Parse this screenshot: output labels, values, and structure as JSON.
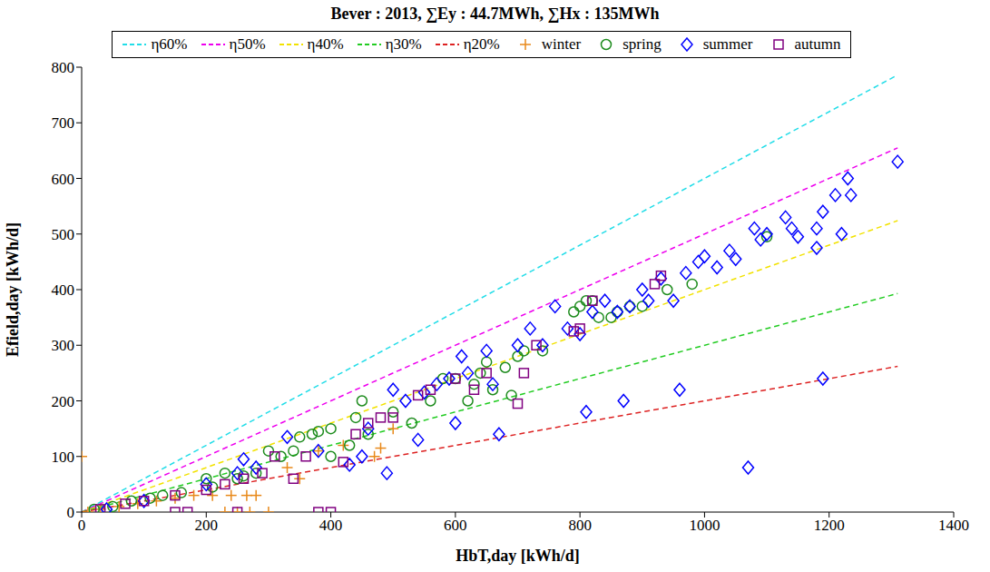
{
  "chart_data": {
    "type": "scatter",
    "title": "Bever : 2013, ∑Ey : 44.7MWh, ∑Hx : 135MWh",
    "x_label": "HbT,day [kWh/d]",
    "y_label": "Efield,day [kWh/d]",
    "xlim": [
      0,
      1400
    ],
    "xticks": [
      0,
      200,
      400,
      600,
      800,
      1000,
      1200,
      1400
    ],
    "ylim": [
      0,
      800
    ],
    "yticks": [
      0,
      100,
      200,
      300,
      400,
      500,
      600,
      700,
      800
    ],
    "grid": false,
    "legend": "top",
    "series": [
      {
        "name": "η60%",
        "type": "line",
        "line_style": "dashed",
        "color": "#22dde8",
        "x": [
          0,
          1310
        ],
        "values": [
          0,
          786
        ]
      },
      {
        "name": "η50%",
        "type": "line",
        "line_style": "dashed",
        "color": "#ee00ee",
        "x": [
          0,
          1310
        ],
        "values": [
          0,
          655
        ]
      },
      {
        "name": "η40%",
        "type": "line",
        "line_style": "dashed",
        "color": "#f2e200",
        "x": [
          0,
          1310
        ],
        "values": [
          0,
          524
        ]
      },
      {
        "name": "η30%",
        "type": "line",
        "line_style": "dashed",
        "color": "#22cc22",
        "x": [
          0,
          1310
        ],
        "values": [
          0,
          393
        ]
      },
      {
        "name": "η20%",
        "type": "line",
        "line_style": "dashed",
        "color": "#dd2222",
        "x": [
          0,
          1310
        ],
        "values": [
          0,
          262
        ]
      },
      {
        "name": "winter",
        "type": "scatter",
        "marker": "plus",
        "color": "#e8891a",
        "x": [
          0,
          10,
          30,
          60,
          90,
          120,
          150,
          180,
          210,
          230,
          240,
          250,
          265,
          270,
          280,
          300,
          330,
          350,
          380,
          420,
          470,
          480,
          500
        ],
        "values": [
          100,
          0,
          5,
          10,
          15,
          20,
          25,
          30,
          30,
          0,
          30,
          0,
          30,
          0,
          30,
          0,
          80,
          60,
          110,
          120,
          100,
          115,
          150
        ]
      },
      {
        "name": "spring",
        "type": "scatter",
        "marker": "circle",
        "color": "#1e8c1e",
        "x": [
          20,
          50,
          80,
          110,
          130,
          160,
          200,
          210,
          230,
          250,
          260,
          280,
          300,
          320,
          340,
          350,
          370,
          380,
          400,
          400,
          430,
          440,
          450,
          460,
          500,
          530,
          560,
          580,
          600,
          620,
          630,
          640,
          650,
          660,
          680,
          690,
          700,
          710,
          740,
          790,
          800,
          810,
          820,
          830,
          850,
          860,
          880,
          900,
          940,
          980,
          1100
        ],
        "values": [
          5,
          10,
          20,
          25,
          30,
          35,
          60,
          45,
          70,
          60,
          65,
          70,
          110,
          100,
          110,
          135,
          140,
          145,
          150,
          100,
          120,
          170,
          200,
          140,
          180,
          160,
          200,
          240,
          240,
          200,
          230,
          250,
          270,
          220,
          260,
          210,
          280,
          290,
          290,
          360,
          370,
          380,
          380,
          350,
          350,
          360,
          370,
          370,
          400,
          410,
          495
        ]
      },
      {
        "name": "summer",
        "type": "scatter",
        "marker": "diamond",
        "color": "#0000ff",
        "x": [
          40,
          100,
          200,
          250,
          260,
          280,
          330,
          380,
          430,
          450,
          460,
          490,
          500,
          520,
          540,
          550,
          570,
          590,
          600,
          610,
          620,
          650,
          660,
          670,
          700,
          720,
          740,
          760,
          780,
          800,
          810,
          820,
          840,
          860,
          870,
          880,
          900,
          910,
          930,
          950,
          960,
          970,
          990,
          1000,
          1020,
          1040,
          1050,
          1070,
          1080,
          1090,
          1100,
          1130,
          1140,
          1150,
          1180,
          1180,
          1190,
          1190,
          1210,
          1220,
          1230,
          1235,
          1310
        ],
        "values": [
          5,
          20,
          50,
          70,
          95,
          80,
          135,
          110,
          85,
          100,
          150,
          70,
          220,
          200,
          130,
          215,
          230,
          240,
          160,
          280,
          250,
          290,
          230,
          140,
          300,
          330,
          300,
          370,
          330,
          320,
          180,
          360,
          380,
          360,
          200,
          370,
          400,
          380,
          420,
          380,
          220,
          430,
          450,
          460,
          440,
          470,
          455,
          80,
          510,
          490,
          500,
          530,
          510,
          495,
          475,
          510,
          540,
          240,
          570,
          500,
          600,
          570,
          630
        ]
      },
      {
        "name": "autumn",
        "type": "scatter",
        "marker": "square",
        "color": "#800080",
        "x": [
          30,
          70,
          100,
          150,
          150,
          170,
          200,
          230,
          250,
          260,
          290,
          310,
          340,
          360,
          380,
          400,
          420,
          440,
          460,
          480,
          500,
          540,
          560,
          600,
          630,
          650,
          700,
          710,
          730,
          790,
          800,
          820,
          920,
          930
        ],
        "values": [
          5,
          15,
          20,
          30,
          0,
          0,
          40,
          50,
          0,
          60,
          70,
          100,
          60,
          100,
          0,
          0,
          90,
          140,
          160,
          170,
          170,
          210,
          220,
          240,
          220,
          250,
          195,
          250,
          300,
          325,
          330,
          380,
          410,
          425
        ]
      }
    ]
  }
}
